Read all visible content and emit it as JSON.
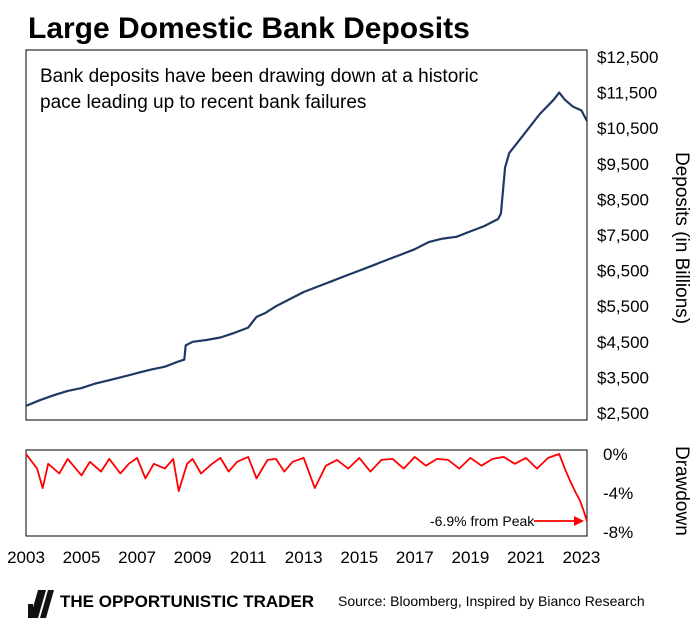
{
  "title": "Large Domestic Bank Deposits",
  "footer": {
    "brand": "THE OPPORTUNISTIC TRADER",
    "source": "Source: Bloomberg, Inspired by Bianco Research"
  },
  "colors": {
    "deposits_line": "#1f3864",
    "drawdown_line": "#ff0000",
    "axis": "#000000"
  },
  "chart_data": [
    {
      "type": "line",
      "annotation": "Bank deposits have been drawing down at a historic pace leading up to recent bank failures",
      "ylabel": "Deposits (in Billions)",
      "ylim": [
        2500,
        12500
      ],
      "yticks": [
        "$12,500",
        "$11,500",
        "$10,500",
        "$9,500",
        "$8,500",
        "$7,500",
        "$6,500",
        "$5,500",
        "$4,500",
        "$3,500",
        "$2,500"
      ],
      "ytick_values": [
        12500,
        11500,
        10500,
        9500,
        8500,
        7500,
        6500,
        5500,
        4500,
        3500,
        2500
      ],
      "xlim": [
        2003,
        2023.2
      ],
      "series": [
        {
          "x": [
            2003.0,
            2003.5,
            2004.0,
            2004.5,
            2005.0,
            2005.5,
            2006.0,
            2006.5,
            2007.0,
            2007.5,
            2008.0,
            2008.5,
            2008.7,
            2008.75,
            2009.0,
            2009.5,
            2010.0,
            2010.5,
            2011.0,
            2011.3,
            2011.6,
            2012.0,
            2012.5,
            2013.0,
            2013.5,
            2014.0,
            2014.5,
            2015.0,
            2015.5,
            2016.0,
            2016.5,
            2017.0,
            2017.5,
            2018.0,
            2018.5,
            2019.0,
            2019.5,
            2020.0,
            2020.1,
            2020.25,
            2020.4,
            2020.7,
            2021.0,
            2021.5,
            2022.0,
            2022.2,
            2022.4,
            2022.7,
            2023.0,
            2023.2
          ],
          "values": [
            2700,
            2860,
            3000,
            3120,
            3200,
            3330,
            3420,
            3520,
            3620,
            3720,
            3800,
            3950,
            4000,
            4400,
            4500,
            4550,
            4620,
            4750,
            4900,
            5200,
            5300,
            5500,
            5700,
            5900,
            6050,
            6200,
            6350,
            6500,
            6650,
            6800,
            6950,
            7100,
            7300,
            7400,
            7450,
            7600,
            7750,
            7950,
            8100,
            9400,
            9800,
            10100,
            10400,
            10900,
            11300,
            11500,
            11300,
            11100,
            11000,
            10700
          ]
        }
      ]
    },
    {
      "type": "line",
      "ylabel": "Drawdown",
      "ylim": [
        -8,
        0
      ],
      "yticks": [
        "0%",
        "-4%",
        "-8%"
      ],
      "ytick_values": [
        0,
        -4,
        -8
      ],
      "xlim": [
        2003,
        2023.2
      ],
      "xticks": [
        "2003",
        "2005",
        "2007",
        "2009",
        "2011",
        "2013",
        "2015",
        "2017",
        "2019",
        "2021",
        "2023"
      ],
      "xtick_values": [
        2003,
        2005,
        2007,
        2009,
        2011,
        2013,
        2015,
        2017,
        2019,
        2021,
        2023
      ],
      "annotation": "-6.9% from Peak",
      "series": [
        {
          "x": [
            2003.0,
            2003.4,
            2003.6,
            2003.8,
            2004.2,
            2004.5,
            2005.0,
            2005.3,
            2005.7,
            2006.0,
            2006.4,
            2006.7,
            2007.0,
            2007.3,
            2007.6,
            2008.0,
            2008.3,
            2008.5,
            2008.8,
            2009.0,
            2009.3,
            2009.7,
            2010.0,
            2010.3,
            2010.6,
            2011.0,
            2011.3,
            2011.7,
            2012.0,
            2012.3,
            2012.6,
            2013.0,
            2013.4,
            2013.8,
            2014.2,
            2014.6,
            2015.0,
            2015.4,
            2015.8,
            2016.2,
            2016.6,
            2017.0,
            2017.4,
            2017.8,
            2018.2,
            2018.6,
            2019.0,
            2019.4,
            2019.8,
            2020.2,
            2020.6,
            2021.0,
            2021.4,
            2021.8,
            2022.2,
            2022.4,
            2022.6,
            2022.8,
            2022.95,
            2023.1,
            2023.2
          ],
          "values": [
            0,
            -1.5,
            -3.5,
            -1,
            -2,
            -0.5,
            -2.2,
            -0.8,
            -1.8,
            -0.5,
            -2.0,
            -1.0,
            -0.4,
            -2.5,
            -1.0,
            -1.5,
            -0.5,
            -3.8,
            -1.0,
            -0.5,
            -2.0,
            -1.0,
            -0.4,
            -1.8,
            -0.8,
            -0.3,
            -2.5,
            -0.6,
            -0.5,
            -1.8,
            -0.8,
            -0.4,
            -3.5,
            -1.2,
            -0.6,
            -1.5,
            -0.4,
            -1.8,
            -0.6,
            -0.5,
            -1.5,
            -0.3,
            -1.2,
            -0.5,
            -0.6,
            -1.5,
            -0.4,
            -1.2,
            -0.5,
            -0.3,
            -1.0,
            -0.4,
            -1.5,
            -0.4,
            0,
            -1.5,
            -2.8,
            -4.0,
            -4.8,
            -6.0,
            -6.9
          ]
        }
      ]
    }
  ]
}
